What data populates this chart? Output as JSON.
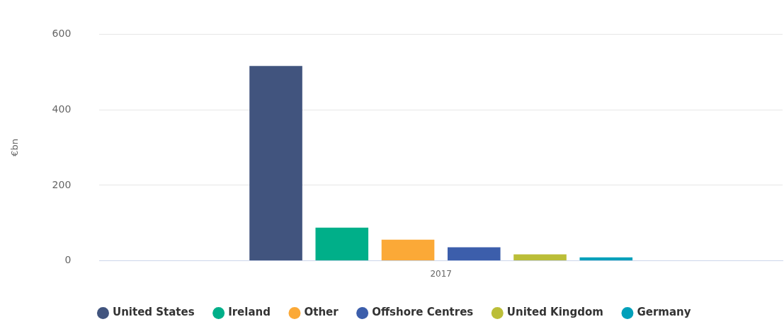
{
  "chart_data": {
    "type": "bar",
    "ylabel": "€bn",
    "categories": [
      "2017"
    ],
    "series": [
      {
        "name": "United States",
        "color": "#41547e",
        "values": [
          516
        ]
      },
      {
        "name": "Ireland",
        "color": "#00af89",
        "values": [
          88
        ]
      },
      {
        "name": "Other",
        "color": "#fba937",
        "values": [
          56
        ]
      },
      {
        "name": "Offshore Centres",
        "color": "#3c5eab",
        "values": [
          36
        ]
      },
      {
        "name": "United Kingdom",
        "color": "#bbbe38",
        "values": [
          17
        ]
      },
      {
        "name": "Germany",
        "color": "#00a0ba",
        "values": [
          9
        ]
      }
    ],
    "ylim": [
      0,
      600
    ],
    "yticks": [
      0,
      200,
      400,
      600
    ],
    "grid": "y",
    "legend": "bottom"
  }
}
